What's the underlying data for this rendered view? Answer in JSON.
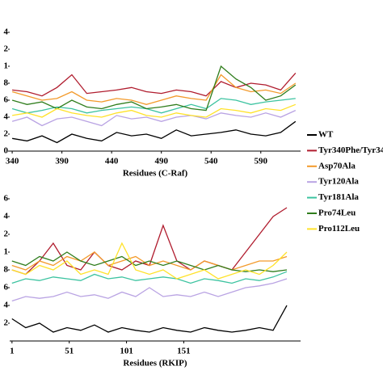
{
  "chart_data": [
    {
      "type": "line",
      "xlabel": "Residues (C-Raf)",
      "x": [
        340,
        355,
        370,
        385,
        400,
        415,
        430,
        445,
        460,
        475,
        490,
        505,
        520,
        535,
        550,
        565,
        580,
        595,
        610,
        625
      ],
      "xlim": [
        337.5,
        630
      ],
      "xticks": [
        340,
        390,
        440,
        490,
        540,
        590
      ],
      "ylim": [
        0,
        1.4
      ],
      "yticks": [
        0,
        {
          "value": 0.2,
          "label": "2"
        },
        {
          "value": 0.4,
          "label": "4"
        },
        {
          "value": 0.6,
          "label": "6"
        },
        {
          "value": 0.8,
          "label": "8"
        },
        1,
        {
          "value": 1.2,
          "label": "2"
        },
        {
          "value": 1.4,
          "label": "4"
        }
      ],
      "series": [
        {
          "name": "WT",
          "color": "#000000",
          "values": [
            0.15,
            0.12,
            0.18,
            0.1,
            0.2,
            0.15,
            0.12,
            0.22,
            0.18,
            0.2,
            0.15,
            0.25,
            0.18,
            0.2,
            0.22,
            0.25,
            0.2,
            0.18,
            0.22,
            0.35
          ]
        },
        {
          "name": "Tyr340Phe/Tyr34",
          "color": "#b01c2e",
          "values": [
            0.72,
            0.7,
            0.65,
            0.75,
            0.9,
            0.68,
            0.7,
            0.72,
            0.75,
            0.7,
            0.68,
            0.72,
            0.7,
            0.65,
            0.82,
            0.75,
            0.8,
            0.78,
            0.72,
            0.92
          ]
        },
        {
          "name": "Asp70Ala",
          "color": "#f39a2b",
          "values": [
            0.7,
            0.65,
            0.6,
            0.62,
            0.7,
            0.6,
            0.58,
            0.62,
            0.6,
            0.55,
            0.6,
            0.65,
            0.62,
            0.6,
            0.9,
            0.75,
            0.7,
            0.72,
            0.68,
            0.8
          ]
        },
        {
          "name": "Tyr120Ala",
          "color": "#b9a3e3",
          "values": [
            0.35,
            0.4,
            0.3,
            0.38,
            0.4,
            0.35,
            0.3,
            0.42,
            0.38,
            0.4,
            0.35,
            0.4,
            0.42,
            0.38,
            0.45,
            0.42,
            0.4,
            0.45,
            0.4,
            0.48
          ]
        },
        {
          "name": "Tyr181Ala",
          "color": "#3cc3a0",
          "values": [
            0.5,
            0.45,
            0.48,
            0.52,
            0.5,
            0.45,
            0.48,
            0.5,
            0.52,
            0.5,
            0.45,
            0.5,
            0.55,
            0.5,
            0.62,
            0.6,
            0.55,
            0.58,
            0.6,
            0.62
          ]
        },
        {
          "name": "Pro74Leu",
          "color": "#2f7d1c",
          "values": [
            0.6,
            0.55,
            0.58,
            0.5,
            0.6,
            0.52,
            0.5,
            0.55,
            0.58,
            0.5,
            0.52,
            0.55,
            0.5,
            0.48,
            1.0,
            0.85,
            0.75,
            0.6,
            0.65,
            0.78
          ]
        },
        {
          "name": "Pro112Leu",
          "color": "#ffe22a",
          "values": [
            0.42,
            0.45,
            0.4,
            0.5,
            0.45,
            0.42,
            0.4,
            0.45,
            0.48,
            0.42,
            0.4,
            0.45,
            0.42,
            0.4,
            0.5,
            0.48,
            0.45,
            0.5,
            0.48,
            0.55
          ]
        }
      ]
    },
    {
      "type": "line",
      "xlabel": "Residues (RKIP)",
      "x": [
        1,
        13,
        25,
        37,
        49,
        61,
        73,
        85,
        97,
        109,
        121,
        133,
        145,
        157,
        169,
        181,
        193,
        205,
        217,
        229,
        241
      ],
      "xlim": [
        -1,
        253
      ],
      "xticks": [
        1,
        51,
        101,
        151
      ],
      "ylim": [
        0,
        1.6
      ],
      "yticks": [
        {
          "value": 0.2,
          "label": "2"
        },
        {
          "value": 0.4,
          "label": "4"
        },
        {
          "value": 0.6,
          "label": "6"
        },
        {
          "value": 0.8,
          "label": "8"
        },
        1,
        {
          "value": 1.2,
          "label": "2"
        },
        {
          "value": 1.4,
          "label": "4"
        },
        {
          "value": 1.6,
          "label": "6"
        }
      ],
      "series": [
        {
          "values": [
            0.25,
            0.15,
            0.2,
            0.1,
            0.15,
            0.12,
            0.18,
            0.1,
            0.15,
            0.12,
            0.1,
            0.15,
            0.12,
            0.1,
            0.15,
            0.12,
            0.1,
            0.12,
            0.15,
            0.12,
            0.4
          ]
        },
        {
          "values": [
            0.8,
            0.75,
            0.9,
            1.1,
            0.85,
            0.8,
            1.0,
            0.85,
            0.8,
            0.9,
            0.85,
            1.3,
            0.9,
            0.8,
            0.9,
            0.85,
            0.8,
            1.0,
            1.2,
            1.4,
            1.5
          ]
        },
        {
          "values": [
            0.85,
            0.8,
            0.9,
            0.85,
            0.95,
            0.9,
            1.0,
            0.85,
            0.9,
            0.95,
            0.85,
            0.9,
            0.85,
            0.8,
            0.9,
            0.85,
            0.8,
            0.85,
            0.9,
            0.9,
            0.95
          ]
        },
        {
          "values": [
            0.45,
            0.5,
            0.48,
            0.5,
            0.55,
            0.5,
            0.52,
            0.48,
            0.55,
            0.5,
            0.6,
            0.5,
            0.52,
            0.5,
            0.55,
            0.5,
            0.55,
            0.6,
            0.62,
            0.65,
            0.7
          ]
        },
        {
          "values": [
            0.65,
            0.7,
            0.68,
            0.72,
            0.7,
            0.68,
            0.75,
            0.7,
            0.72,
            0.68,
            0.7,
            0.72,
            0.7,
            0.65,
            0.7,
            0.68,
            0.65,
            0.7,
            0.68,
            0.72,
            0.78
          ]
        },
        {
          "values": [
            0.9,
            0.85,
            0.95,
            0.9,
            1.0,
            0.9,
            0.85,
            0.9,
            0.95,
            0.85,
            0.9,
            0.85,
            0.9,
            0.85,
            0.8,
            0.85,
            0.8,
            0.78,
            0.8,
            0.78,
            0.8
          ]
        },
        {
          "values": [
            0.8,
            0.75,
            0.85,
            0.8,
            0.9,
            0.75,
            0.8,
            0.75,
            1.1,
            0.8,
            0.75,
            0.8,
            0.7,
            0.75,
            0.8,
            0.7,
            0.75,
            0.8,
            0.75,
            0.85,
            1.0
          ]
        }
      ]
    }
  ]
}
